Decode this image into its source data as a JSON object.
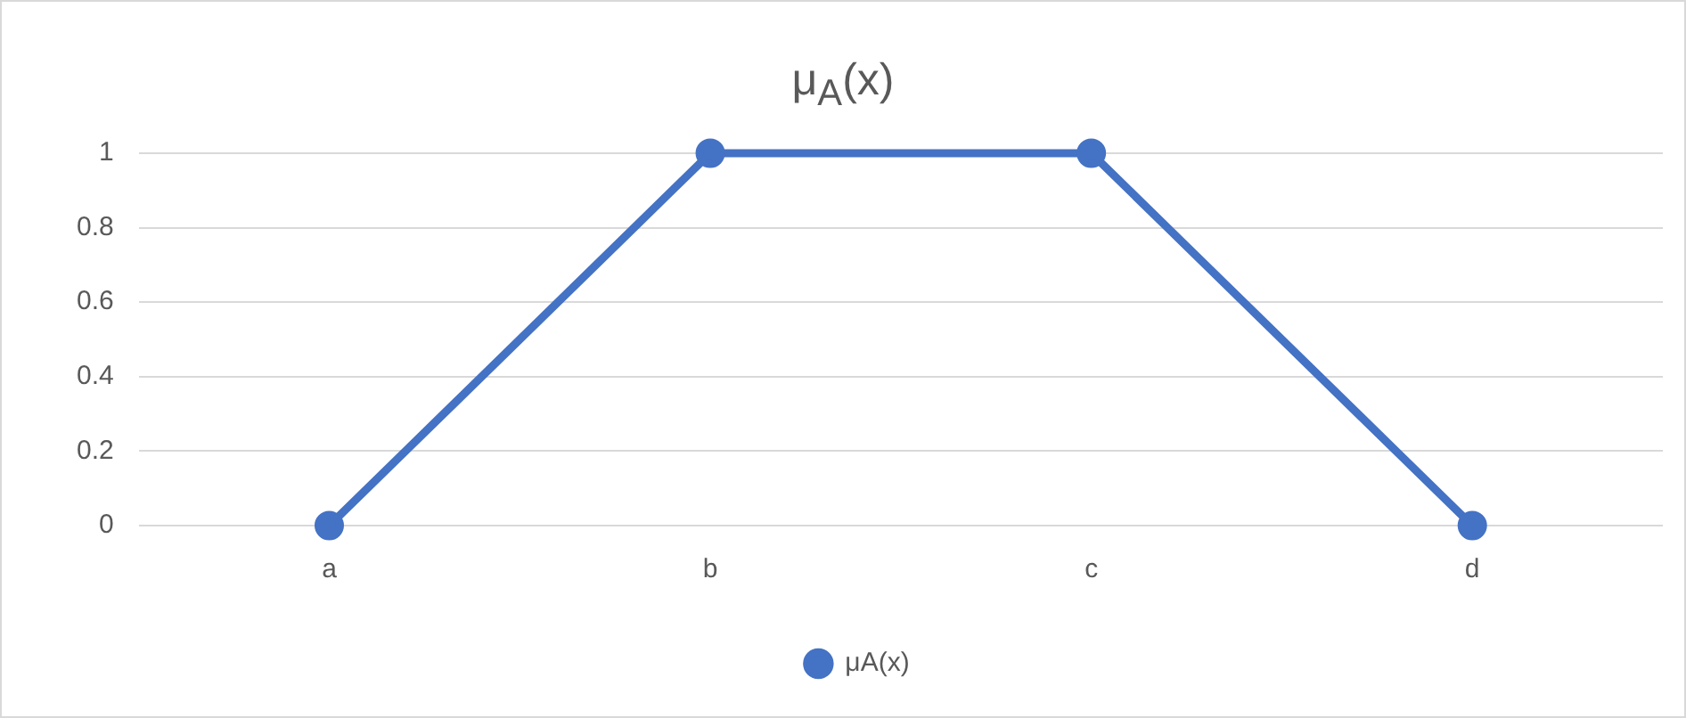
{
  "chart_data": {
    "type": "line",
    "title": "μ$_{A}$(x)",
    "categories": [
      "a",
      "b",
      "c",
      "d"
    ],
    "series": [
      {
        "name": "μA(x)",
        "color": "#4472c4",
        "values": [
          0,
          1,
          1,
          0
        ]
      }
    ],
    "ylim": [
      0,
      1
    ],
    "yticks": [
      0,
      0.2,
      0.4,
      0.6,
      0.8,
      1
    ],
    "grid": "y",
    "legend": "bottom",
    "marker": "circle",
    "line_style": "solid"
  }
}
